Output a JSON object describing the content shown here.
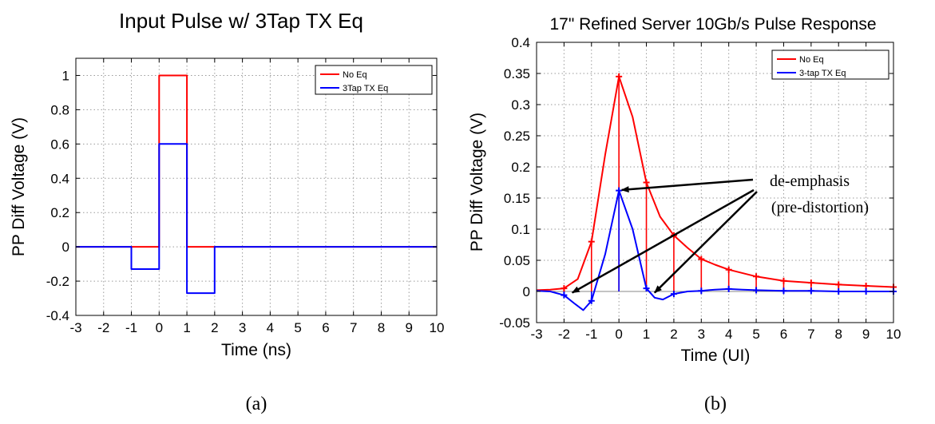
{
  "chart_data": [
    {
      "type": "line",
      "panel_label": "(a)",
      "title": "Input Pulse w/ 3Tap TX Eq",
      "xlabel": "Time (ns)",
      "ylabel": "PP Diff Voltage (V)",
      "xlim": [
        -3,
        10
      ],
      "ylim": [
        -0.4,
        1.1
      ],
      "xticks": [
        -3,
        -2,
        -1,
        0,
        1,
        2,
        3,
        4,
        5,
        6,
        7,
        8,
        9,
        10
      ],
      "yticks": [
        -0.4,
        -0.2,
        0,
        0.2,
        0.4,
        0.6,
        0.8,
        1
      ],
      "ytick_labels": [
        "-0.4",
        "-0.2",
        "0",
        "0.2",
        "0.4",
        "0.6",
        "0.8",
        "1"
      ],
      "grid": true,
      "legend_position": "top-right",
      "series": [
        {
          "name": "No Eq",
          "color": "#ff0000",
          "x": [
            -3,
            -1,
            -1,
            0,
            0,
            1,
            1,
            2,
            2,
            10
          ],
          "y": [
            0,
            0,
            0,
            0,
            1,
            1,
            0,
            0,
            0,
            0
          ]
        },
        {
          "name": "3Tap TX Eq",
          "color": "#0000ff",
          "x": [
            -3,
            -1,
            -1,
            0,
            0,
            1,
            1,
            2,
            2,
            10
          ],
          "y": [
            0,
            0,
            -0.13,
            -0.13,
            0.6,
            0.6,
            -0.27,
            -0.27,
            0,
            0
          ]
        }
      ]
    },
    {
      "type": "line",
      "panel_label": "(b)",
      "title": "17\" Refined Server 10Gb/s Pulse Response",
      "xlabel": "Time (UI)",
      "ylabel": "PP Diff Voltage (V)",
      "xlim": [
        -3,
        10
      ],
      "ylim": [
        -0.05,
        0.4
      ],
      "xticks": [
        -3,
        -2,
        -1,
        0,
        1,
        2,
        3,
        4,
        5,
        6,
        7,
        8,
        9,
        10
      ],
      "yticks": [
        -0.05,
        0,
        0.05,
        0.1,
        0.15,
        0.2,
        0.25,
        0.3,
        0.35,
        0.4
      ],
      "ytick_labels": [
        "-0.05",
        "0",
        "0.05",
        "0.1",
        "0.15",
        "0.2",
        "0.25",
        "0.3",
        "0.35",
        "0.4"
      ],
      "grid": true,
      "legend_position": "top-right",
      "series": [
        {
          "name": "No Eq",
          "color": "#ff0000",
          "x": [
            -3,
            -2.5,
            -2,
            -1.5,
            -1,
            -0.5,
            0,
            0.5,
            1,
            1.5,
            2,
            2.5,
            3,
            3.5,
            4,
            5,
            6,
            7,
            8,
            9,
            10
          ],
          "y": [
            0.002,
            0.003,
            0.005,
            0.02,
            0.08,
            0.22,
            0.345,
            0.28,
            0.175,
            0.12,
            0.09,
            0.07,
            0.052,
            0.043,
            0.035,
            0.024,
            0.017,
            0.014,
            0.011,
            0.009,
            0.007
          ],
          "markers": {
            "x": [
              -2,
              -1,
              0,
              1,
              2,
              3,
              4,
              5,
              6,
              7,
              8,
              9,
              10
            ],
            "y": [
              0.005,
              0.08,
              0.345,
              0.175,
              0.09,
              0.052,
              0.035,
              0.024,
              0.017,
              0.014,
              0.011,
              0.009,
              0.007
            ]
          }
        },
        {
          "name": "3-tap TX Eq",
          "color": "#0000ff",
          "x": [
            -3,
            -2.5,
            -2,
            -1.6,
            -1.3,
            -1,
            -0.5,
            0,
            0.5,
            1,
            1.3,
            1.6,
            2,
            2.5,
            3,
            3.5,
            4,
            4.5,
            5,
            6,
            7,
            8,
            9,
            10
          ],
          "y": [
            0.001,
            0.0,
            -0.006,
            -0.02,
            -0.03,
            -0.015,
            0.06,
            0.162,
            0.1,
            0.005,
            -0.01,
            -0.013,
            -0.004,
            0.0,
            0.001,
            0.003,
            0.004,
            0.003,
            0.002,
            0.001,
            0.001,
            0.0,
            0.0,
            0.0
          ],
          "markers": {
            "x": [
              -2,
              -1,
              0,
              1,
              2,
              3,
              4,
              5,
              6,
              7,
              8,
              9,
              10
            ],
            "y": [
              -0.006,
              -0.015,
              0.162,
              0.005,
              -0.004,
              0.001,
              0.004,
              0.002,
              0.001,
              0.001,
              0.0,
              0.0,
              0.0
            ]
          }
        }
      ],
      "annotation": {
        "lines": [
          "de-emphasis",
          "(pre-distortion)"
        ],
        "arrow_targets": [
          {
            "x": 0.1,
            "y": 0.163
          },
          {
            "x": -1.7,
            "y": -0.002
          },
          {
            "x": 1.3,
            "y": -0.002
          }
        ]
      }
    }
  ]
}
